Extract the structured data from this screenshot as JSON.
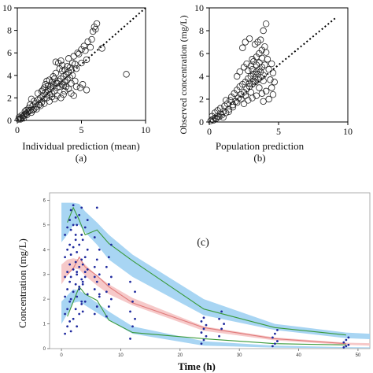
{
  "chart_data": [
    {
      "type": "scatter",
      "panel_label": "(a)",
      "xlabel": "Individual prediction (mean)",
      "ylabel": "",
      "xlim": [
        0,
        10
      ],
      "ylim": [
        0,
        10
      ],
      "xticks": [
        "0",
        "5",
        "10"
      ],
      "yticks": [
        "0",
        "2",
        "4",
        "6",
        "8",
        "10"
      ],
      "reference_line": "y = x (dotted)",
      "points": [
        [
          0.1,
          0.1
        ],
        [
          0.2,
          0.15
        ],
        [
          0.3,
          0.2
        ],
        [
          0.4,
          0.3
        ],
        [
          0.5,
          0.4
        ],
        [
          0.6,
          0.55
        ],
        [
          0.7,
          0.6
        ],
        [
          0.8,
          0.75
        ],
        [
          0.9,
          0.8
        ],
        [
          1.0,
          0.9
        ],
        [
          0.15,
          0.3
        ],
        [
          0.25,
          0.1
        ],
        [
          0.35,
          0.45
        ],
        [
          0.5,
          0.2
        ],
        [
          0.6,
          0.8
        ],
        [
          0.75,
          0.5
        ],
        [
          0.9,
          1.1
        ],
        [
          1.1,
          0.7
        ],
        [
          1.2,
          1.3
        ],
        [
          1.3,
          1.0
        ],
        [
          1.4,
          1.5
        ],
        [
          1.5,
          1.2
        ],
        [
          1.6,
          1.8
        ],
        [
          1.7,
          1.4
        ],
        [
          1.8,
          2.0
        ],
        [
          1.9,
          1.6
        ],
        [
          2.0,
          2.2
        ],
        [
          2.1,
          1.9
        ],
        [
          2.2,
          2.5
        ],
        [
          2.3,
          2.0
        ],
        [
          2.4,
          2.7
        ],
        [
          2.5,
          2.3
        ],
        [
          2.6,
          3.0
        ],
        [
          2.7,
          2.4
        ],
        [
          2.8,
          3.1
        ],
        [
          2.9,
          2.6
        ],
        [
          3.0,
          3.3
        ],
        [
          3.1,
          2.9
        ],
        [
          3.2,
          3.5
        ],
        [
          3.3,
          3.0
        ],
        [
          3.4,
          3.7
        ],
        [
          3.5,
          3.2
        ],
        [
          3.6,
          3.9
        ],
        [
          3.7,
          3.4
        ],
        [
          3.8,
          4.1
        ],
        [
          3.9,
          3.6
        ],
        [
          4.0,
          4.3
        ],
        [
          4.1,
          3.8
        ],
        [
          4.2,
          4.5
        ],
        [
          4.3,
          4.0
        ],
        [
          2.2,
          3.2
        ],
        [
          2.5,
          3.6
        ],
        [
          2.8,
          3.9
        ],
        [
          3.0,
          4.2
        ],
        [
          3.3,
          4.6
        ],
        [
          3.5,
          4.9
        ],
        [
          3.2,
          5.1
        ],
        [
          3.4,
          5.3
        ],
        [
          3.0,
          5.2
        ],
        [
          4.0,
          5.5
        ],
        [
          4.4,
          5.7
        ],
        [
          4.7,
          6.0
        ],
        [
          5.0,
          6.3
        ],
        [
          5.2,
          6.6
        ],
        [
          5.5,
          7.0
        ],
        [
          5.8,
          7.2
        ],
        [
          6.1,
          8.1
        ],
        [
          6.2,
          8.6
        ],
        [
          5.9,
          7.9
        ],
        [
          6.0,
          8.3
        ],
        [
          5.3,
          6.2
        ],
        [
          4.8,
          5.9
        ],
        [
          4.5,
          5.0
        ],
        [
          4.6,
          4.6
        ],
        [
          5.0,
          5.1
        ],
        [
          5.4,
          5.4
        ],
        [
          5.7,
          6.5
        ],
        [
          6.6,
          6.4
        ],
        [
          8.5,
          4.1
        ],
        [
          2.0,
          2.7
        ],
        [
          2.3,
          3.5
        ],
        [
          2.6,
          2.8
        ],
        [
          2.9,
          3.7
        ],
        [
          3.1,
          3.3
        ],
        [
          3.6,
          3.1
        ],
        [
          3.8,
          3.0
        ],
        [
          4.2,
          3.3
        ],
        [
          4.5,
          3.5
        ],
        [
          4.9,
          2.9
        ],
        [
          5.1,
          3.2
        ],
        [
          3.7,
          2.6
        ],
        [
          4.0,
          2.8
        ],
        [
          4.2,
          2.4
        ],
        [
          4.6,
          3.0
        ],
        [
          5.4,
          2.7
        ],
        [
          2.7,
          2.1
        ],
        [
          3.1,
          2.2
        ],
        [
          3.4,
          2.0
        ],
        [
          3.6,
          2.3
        ],
        [
          4.4,
          2.2
        ],
        [
          1.6,
          2.4
        ],
        [
          1.9,
          2.6
        ],
        [
          2.1,
          2.9
        ],
        [
          2.4,
          3.1
        ],
        [
          2.7,
          3.4
        ],
        [
          3.5,
          4.4
        ],
        [
          3.9,
          4.8
        ],
        [
          4.3,
          5.1
        ],
        [
          4.1,
          4.7
        ],
        [
          3.7,
          4.5
        ],
        [
          1.2,
          0.9
        ],
        [
          1.5,
          1.0
        ],
        [
          1.8,
          1.3
        ],
        [
          2.1,
          1.5
        ],
        [
          2.5,
          1.7
        ],
        [
          0.7,
          0.9
        ],
        [
          1.0,
          1.4
        ],
        [
          1.3,
          1.7
        ],
        [
          1.1,
          1.9
        ],
        [
          2.9,
          1.9
        ]
      ]
    },
    {
      "type": "scatter",
      "panel_label": "(b)",
      "xlabel": "Population prediction",
      "ylabel": "Observed concentration (mg/L)",
      "xlim": [
        0,
        10
      ],
      "ylim": [
        0,
        10
      ],
      "xticks": [
        "0",
        "5",
        "10"
      ],
      "yticks": [
        "0",
        "2",
        "4",
        "6",
        "8",
        "10"
      ],
      "reference_line": "y = x (dotted)",
      "points": [
        [
          0.1,
          0.1
        ],
        [
          0.2,
          0.2
        ],
        [
          0.3,
          0.15
        ],
        [
          0.4,
          0.35
        ],
        [
          0.5,
          0.3
        ],
        [
          0.6,
          0.5
        ],
        [
          0.7,
          0.45
        ],
        [
          0.8,
          0.7
        ],
        [
          0.9,
          0.6
        ],
        [
          1.0,
          0.9
        ],
        [
          0.2,
          0.5
        ],
        [
          0.4,
          0.8
        ],
        [
          0.6,
          1.0
        ],
        [
          0.8,
          1.2
        ],
        [
          1.0,
          0.4
        ],
        [
          1.1,
          1.4
        ],
        [
          1.2,
          0.8
        ],
        [
          1.3,
          1.6
        ],
        [
          1.4,
          1.1
        ],
        [
          1.5,
          1.9
        ],
        [
          1.6,
          2.2
        ],
        [
          1.7,
          1.5
        ],
        [
          1.8,
          2.5
        ],
        [
          1.9,
          1.8
        ],
        [
          2.0,
          2.8
        ],
        [
          2.1,
          2.1
        ],
        [
          2.2,
          3.1
        ],
        [
          2.3,
          2.4
        ],
        [
          2.4,
          3.3
        ],
        [
          2.5,
          2.6
        ],
        [
          2.6,
          3.5
        ],
        [
          2.7,
          2.9
        ],
        [
          2.8,
          3.8
        ],
        [
          2.9,
          3.1
        ],
        [
          3.0,
          4.0
        ],
        [
          3.1,
          3.3
        ],
        [
          3.2,
          4.2
        ],
        [
          3.3,
          3.5
        ],
        [
          3.4,
          4.4
        ],
        [
          3.5,
          3.7
        ],
        [
          3.6,
          4.6
        ],
        [
          3.7,
          3.9
        ],
        [
          3.8,
          4.8
        ],
        [
          3.9,
          4.1
        ],
        [
          4.0,
          5.0
        ],
        [
          2.8,
          4.5
        ],
        [
          3.0,
          4.9
        ],
        [
          3.2,
          5.3
        ],
        [
          3.4,
          5.7
        ],
        [
          3.6,
          6.0
        ],
        [
          3.8,
          6.3
        ],
        [
          4.0,
          6.6
        ],
        [
          3.7,
          7.2
        ],
        [
          3.9,
          8.0
        ],
        [
          4.1,
          8.6
        ],
        [
          3.5,
          7.0
        ],
        [
          2.4,
          6.5
        ],
        [
          2.6,
          7.0
        ],
        [
          2.9,
          7.3
        ],
        [
          3.3,
          6.8
        ],
        [
          2.0,
          4.0
        ],
        [
          2.2,
          4.4
        ],
        [
          2.5,
          4.8
        ],
        [
          2.7,
          5.1
        ],
        [
          3.1,
          5.5
        ],
        [
          3.6,
          5.2
        ],
        [
          4.2,
          5.5
        ],
        [
          4.5,
          5.1
        ],
        [
          4.3,
          4.6
        ],
        [
          4.6,
          4.3
        ],
        [
          4.4,
          3.7
        ],
        [
          4.7,
          3.5
        ],
        [
          4.5,
          3.0
        ],
        [
          4.1,
          2.7
        ],
        [
          3.8,
          2.5
        ],
        [
          3.4,
          2.3
        ],
        [
          3.1,
          2.1
        ],
        [
          2.8,
          1.9
        ],
        [
          2.5,
          1.6
        ],
        [
          3.9,
          1.8
        ],
        [
          4.3,
          2.0
        ],
        [
          4.6,
          2.4
        ],
        [
          3.6,
          3.0
        ],
        [
          3.0,
          2.6
        ],
        [
          2.6,
          2.3
        ],
        [
          2.3,
          2.0
        ],
        [
          2.0,
          1.7
        ],
        [
          1.7,
          1.3
        ],
        [
          1.4,
          0.9
        ],
        [
          1.2,
          1.9
        ],
        [
          3.3,
          3.9
        ],
        [
          3.5,
          4.2
        ],
        [
          3.7,
          4.4
        ],
        [
          3.9,
          3.6
        ],
        [
          3.2,
          3.6
        ],
        [
          2.9,
          3.4
        ],
        [
          3.1,
          4.6
        ],
        [
          3.4,
          5.0
        ],
        [
          3.8,
          5.6
        ],
        [
          4.1,
          6.1
        ]
      ]
    },
    {
      "type": "line",
      "panel_label": "(c)",
      "xlabel": "Time (h)",
      "ylabel": "Concentration (mg/L)",
      "xlim": [
        -2,
        52
      ],
      "ylim": [
        0,
        6.3
      ],
      "xticks": [
        0,
        10,
        20,
        30,
        40,
        50
      ],
      "yticks": [
        0,
        1,
        2,
        3,
        4,
        5,
        6
      ],
      "bands": [
        {
          "name": "",
          "color": "#9fd0f2",
          "times": [
            0,
            1,
            2,
            3,
            4,
            6,
            8,
            12,
            24,
            36,
            48,
            52
          ],
          "lower": [
            4.3,
            4.6,
            5.0,
            5.0,
            4.7,
            4.2,
            3.6,
            2.9,
            1.35,
            0.75,
            0.42,
            0.38
          ],
          "upper": [
            5.9,
            5.9,
            5.9,
            5.85,
            5.55,
            5.1,
            4.6,
            3.8,
            2.0,
            1.0,
            0.65,
            0.6
          ]
        },
        {
          "name": "",
          "color": "#f5c3c3",
          "times": [
            0,
            1,
            2,
            3,
            4,
            6,
            8,
            12,
            24,
            36,
            48,
            52
          ],
          "lower": [
            2.6,
            2.95,
            3.25,
            3.2,
            2.95,
            2.55,
            2.2,
            1.75,
            0.72,
            0.33,
            0.15,
            0.12
          ],
          "upper": [
            3.4,
            3.6,
            3.65,
            3.6,
            3.4,
            2.95,
            2.6,
            2.05,
            0.9,
            0.45,
            0.24,
            0.22
          ]
        },
        {
          "name": "",
          "color": "#9fd0f2",
          "times": [
            0,
            1,
            2,
            3,
            4,
            6,
            8,
            12,
            24,
            36,
            48,
            52
          ],
          "lower": [
            1.0,
            1.4,
            1.85,
            1.9,
            1.75,
            1.45,
            1.15,
            0.6,
            0.12,
            0.04,
            0.02,
            0.02
          ],
          "upper": [
            1.9,
            2.15,
            2.4,
            2.35,
            2.2,
            1.85,
            1.5,
            0.9,
            0.3,
            0.12,
            0.06,
            0.05
          ]
        }
      ],
      "series": [
        {
          "name": "",
          "color": "#3a9a3a",
          "x": [
            1,
            2,
            3,
            4,
            6,
            8,
            12,
            24,
            36,
            48
          ],
          "y": [
            5.1,
            5.7,
            5.2,
            4.6,
            4.8,
            4.25,
            3.55,
            1.6,
            0.85,
            0.55
          ]
        },
        {
          "name": "",
          "color": "#e07a7a",
          "x": [
            1,
            2,
            3,
            4,
            6,
            8,
            12,
            24,
            36,
            48
          ],
          "y": [
            3.0,
            3.25,
            3.7,
            3.3,
            2.95,
            2.5,
            1.85,
            0.85,
            0.4,
            0.2
          ]
        },
        {
          "name": "",
          "color": "#3a9a3a",
          "x": [
            1,
            2,
            3,
            4,
            6,
            8,
            12,
            24,
            36,
            48
          ],
          "y": [
            1.3,
            1.9,
            2.5,
            2.2,
            1.95,
            1.15,
            0.65,
            0.4,
            0.2,
            0.15
          ]
        }
      ],
      "observations": {
        "times": [
          1,
          2,
          3,
          4,
          6,
          8,
          12,
          24,
          27,
          36,
          48
        ],
        "values": [
          [
            0.6,
            0.9,
            1.1,
            1.4,
            1.6,
            1.9,
            2.1,
            2.4,
            2.7,
            2.9,
            3.1,
            3.4,
            3.7,
            4.0,
            4.2,
            4.6,
            4.9,
            5.2
          ],
          [
            0.7,
            1.2,
            1.6,
            2.0,
            2.3,
            2.6,
            2.9,
            3.2,
            3.5,
            3.8,
            4.1,
            4.4,
            4.8,
            5.0,
            5.3,
            5.6,
            5.8,
            4.6
          ],
          [
            0.9,
            1.4,
            1.8,
            2.1,
            2.5,
            2.8,
            3.1,
            3.3,
            3.6,
            3.9,
            4.2,
            4.6,
            5.0,
            5.4,
            5.7,
            3.0,
            2.4,
            1.9
          ],
          [
            1.5,
            1.9,
            2.2,
            2.6,
            2.9,
            3.2,
            3.4,
            3.7,
            4.0,
            4.4,
            4.9,
            5.2,
            2.7,
            3.1
          ],
          [
            1.4,
            1.7,
            2.1,
            2.4,
            2.7,
            3.0,
            3.3,
            3.6,
            4.0,
            4.5,
            5.7,
            2.2,
            2.9
          ],
          [
            1.3,
            1.7,
            2.0,
            2.3,
            2.6,
            2.9,
            3.3,
            3.7,
            4.2
          ],
          [
            0.4,
            0.9,
            1.2,
            1.5,
            1.9,
            2.3,
            2.7
          ],
          [
            0.2,
            0.35,
            0.5,
            0.65,
            0.8,
            0.95,
            1.1,
            1.25
          ],
          [
            0.5,
            0.8,
            1.0,
            1.2,
            1.5
          ],
          [
            0.1,
            0.2,
            0.3,
            0.45,
            0.6,
            0.75
          ],
          [
            0.05,
            0.1,
            0.15,
            0.25,
            0.35,
            0.45
          ]
        ]
      },
      "annotations": [
        "(c)"
      ]
    }
  ]
}
